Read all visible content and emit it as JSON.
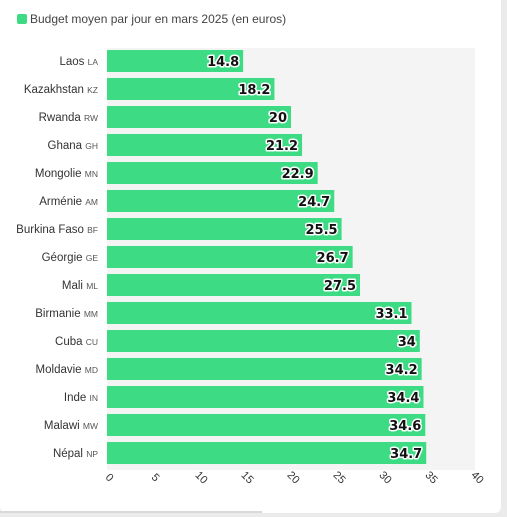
{
  "chart_data": {
    "type": "bar",
    "orientation": "horizontal",
    "legend_label": "Budget moyen par jour en mars 2025 (en euros)",
    "bar_color": "#3ddc84",
    "categories": [
      {
        "name": "Laos",
        "code": "LA"
      },
      {
        "name": "Kazakhstan",
        "code": "KZ"
      },
      {
        "name": "Rwanda",
        "code": "RW"
      },
      {
        "name": "Ghana",
        "code": "GH"
      },
      {
        "name": "Mongolie",
        "code": "MN"
      },
      {
        "name": "Arménie",
        "code": "AM"
      },
      {
        "name": "Burkina Faso",
        "code": "BF"
      },
      {
        "name": "Géorgie",
        "code": "GE"
      },
      {
        "name": "Mali",
        "code": "ML"
      },
      {
        "name": "Birmanie",
        "code": "MM"
      },
      {
        "name": "Cuba",
        "code": "CU"
      },
      {
        "name": "Moldavie",
        "code": "MD"
      },
      {
        "name": "Inde",
        "code": "IN"
      },
      {
        "name": "Malawi",
        "code": "MW"
      },
      {
        "name": "Népal",
        "code": "NP"
      }
    ],
    "values": [
      14.8,
      18.2,
      20,
      21.2,
      22.9,
      24.7,
      25.5,
      26.7,
      27.5,
      33.1,
      34,
      34.2,
      34.4,
      34.6,
      34.7
    ],
    "x_ticks": [
      "0",
      "5",
      "10",
      "15",
      "20",
      "25",
      "30",
      "35",
      "40"
    ],
    "xlim": [
      0,
      40
    ],
    "grid": false,
    "legend_position": "top-left"
  }
}
